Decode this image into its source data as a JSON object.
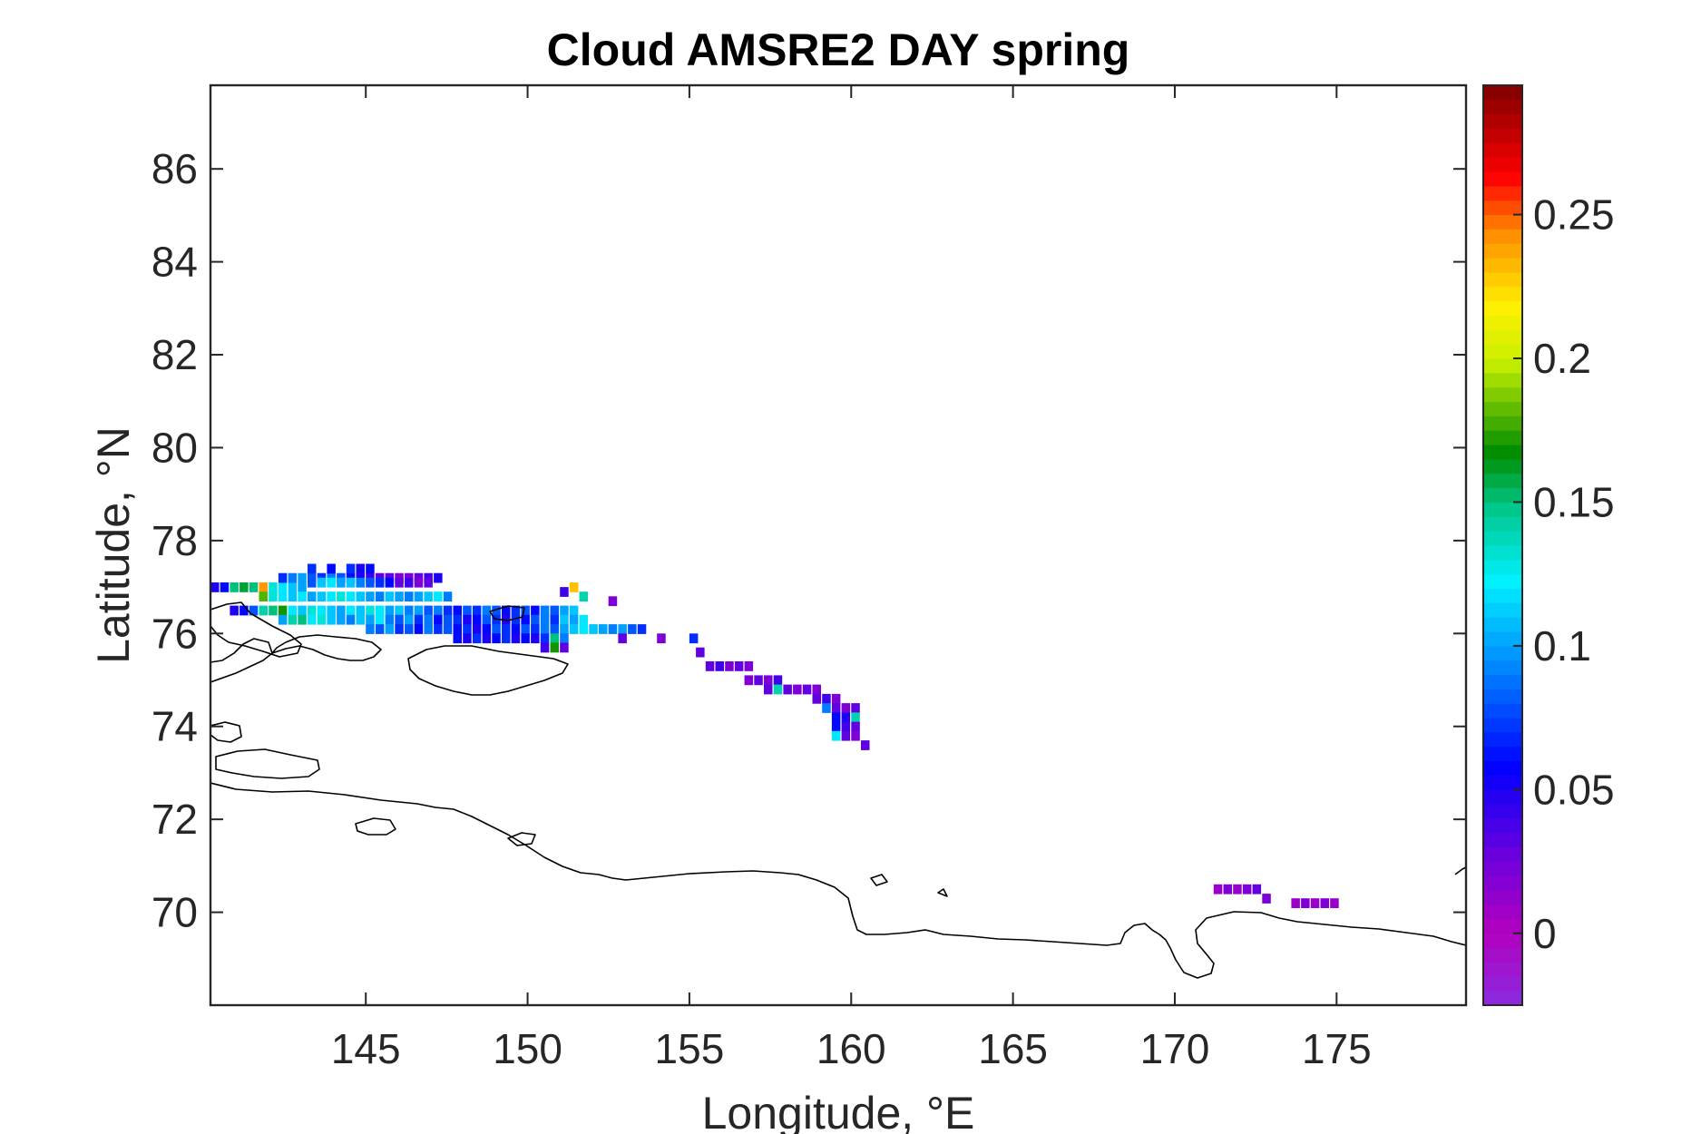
{
  "chart_data": {
    "type": "heatmap",
    "title": "Cloud AMSRE2 DAY spring",
    "xlabel": "Longitude, °E",
    "ylabel": "Latitude, °N",
    "xlim": [
      140.2,
      179.0
    ],
    "ylim": [
      68.0,
      87.8
    ],
    "xticks": [
      145,
      150,
      155,
      160,
      165,
      170,
      175
    ],
    "yticks": [
      70,
      72,
      74,
      76,
      78,
      80,
      82,
      84,
      86
    ],
    "colorbar": {
      "colormap": "jet-with-violet-low",
      "clim": [
        -0.025,
        0.295
      ],
      "ticks": [
        0,
        0.05,
        0.1,
        0.15,
        0.2,
        0.25
      ]
    },
    "grid": false,
    "cell_size": {
      "lon": 0.25,
      "lat": 0.2
    },
    "cells": [
      [
        140.2,
        76.9,
        0.05
      ],
      [
        140.5,
        76.9,
        0.06
      ],
      [
        140.8,
        76.9,
        0.15
      ],
      [
        141.1,
        76.9,
        0.16
      ],
      [
        141.4,
        76.9,
        0.15
      ],
      [
        141.7,
        76.9,
        0.24
      ],
      [
        142.0,
        76.9,
        0.13
      ],
      [
        142.3,
        76.9,
        0.12
      ],
      [
        142.6,
        76.9,
        0.11
      ],
      [
        142.9,
        76.9,
        0.1
      ],
      [
        142.3,
        77.1,
        0.07
      ],
      [
        142.6,
        77.1,
        0.09
      ],
      [
        142.9,
        77.1,
        0.1
      ],
      [
        143.2,
        77.1,
        0.08
      ],
      [
        143.5,
        77.1,
        0.07
      ],
      [
        143.8,
        77.1,
        0.09
      ],
      [
        144.1,
        77.1,
        0.08
      ],
      [
        144.4,
        77.1,
        0.06
      ],
      [
        144.7,
        77.1,
        0.05
      ],
      [
        145.0,
        77.1,
        0.04
      ],
      [
        145.3,
        77.1,
        0.03
      ],
      [
        145.6,
        77.1,
        0.03
      ],
      [
        145.9,
        77.1,
        0.02
      ],
      [
        146.2,
        77.1,
        0.02
      ],
      [
        146.5,
        77.1,
        0.03
      ],
      [
        146.8,
        77.1,
        0.04
      ],
      [
        147.1,
        77.1,
        0.05
      ],
      [
        143.2,
        77.3,
        0.07
      ],
      [
        143.8,
        77.3,
        0.06
      ],
      [
        144.4,
        77.3,
        0.07
      ],
      [
        144.7,
        77.3,
        0.05
      ],
      [
        145.0,
        77.3,
        0.06
      ],
      [
        143.2,
        77.0,
        0.08
      ],
      [
        143.5,
        77.0,
        0.11
      ],
      [
        143.8,
        77.0,
        0.12
      ],
      [
        144.1,
        77.0,
        0.1
      ],
      [
        144.4,
        77.0,
        0.11
      ],
      [
        144.7,
        77.0,
        0.09
      ],
      [
        145.0,
        77.0,
        0.08
      ],
      [
        145.3,
        77.0,
        0.07
      ],
      [
        145.6,
        77.0,
        0.06
      ],
      [
        145.9,
        77.0,
        0.03
      ],
      [
        146.2,
        77.0,
        0.04
      ],
      [
        146.5,
        77.0,
        0.02
      ],
      [
        146.8,
        77.0,
        0.03
      ],
      [
        141.7,
        76.7,
        0.18
      ],
      [
        142.0,
        76.7,
        0.13
      ],
      [
        142.3,
        76.7,
        0.12
      ],
      [
        142.6,
        76.7,
        0.11
      ],
      [
        142.9,
        76.7,
        0.12
      ],
      [
        143.2,
        76.7,
        0.1
      ],
      [
        143.5,
        76.7,
        0.11
      ],
      [
        143.8,
        76.7,
        0.12
      ],
      [
        144.1,
        76.7,
        0.13
      ],
      [
        144.4,
        76.7,
        0.12
      ],
      [
        144.7,
        76.7,
        0.11
      ],
      [
        145.0,
        76.7,
        0.1
      ],
      [
        145.3,
        76.7,
        0.09
      ],
      [
        145.6,
        76.7,
        0.11
      ],
      [
        145.9,
        76.7,
        0.1
      ],
      [
        146.2,
        76.7,
        0.09
      ],
      [
        146.5,
        76.7,
        0.1
      ],
      [
        146.8,
        76.7,
        0.11
      ],
      [
        147.1,
        76.7,
        0.12
      ],
      [
        147.4,
        76.7,
        0.09
      ],
      [
        140.8,
        76.4,
        0.05
      ],
      [
        141.1,
        76.4,
        0.06
      ],
      [
        141.4,
        76.4,
        0.08
      ],
      [
        141.7,
        76.4,
        0.14
      ],
      [
        142.0,
        76.4,
        0.15
      ],
      [
        142.3,
        76.4,
        0.17
      ],
      [
        142.6,
        76.4,
        0.12
      ],
      [
        142.9,
        76.4,
        0.11
      ],
      [
        143.2,
        76.4,
        0.13
      ],
      [
        143.5,
        76.4,
        0.12
      ],
      [
        143.8,
        76.4,
        0.11
      ],
      [
        144.1,
        76.4,
        0.1
      ],
      [
        144.4,
        76.4,
        0.12
      ],
      [
        144.7,
        76.4,
        0.11
      ],
      [
        145.0,
        76.4,
        0.13
      ],
      [
        145.3,
        76.4,
        0.12
      ],
      [
        145.6,
        76.4,
        0.1
      ],
      [
        145.9,
        76.4,
        0.11
      ],
      [
        146.2,
        76.4,
        0.09
      ],
      [
        146.5,
        76.4,
        0.1
      ],
      [
        146.8,
        76.4,
        0.08
      ],
      [
        147.1,
        76.4,
        0.09
      ],
      [
        147.4,
        76.4,
        0.07
      ],
      [
        147.7,
        76.4,
        0.06
      ],
      [
        148.0,
        76.4,
        0.08
      ],
      [
        148.3,
        76.4,
        0.07
      ],
      [
        148.6,
        76.4,
        0.09
      ],
      [
        148.9,
        76.4,
        0.08
      ],
      [
        149.2,
        76.4,
        0.06
      ],
      [
        149.5,
        76.4,
        0.07
      ],
      [
        149.8,
        76.4,
        0.08
      ],
      [
        150.1,
        76.4,
        0.06
      ],
      [
        150.4,
        76.4,
        0.09
      ],
      [
        150.7,
        76.4,
        0.08
      ],
      [
        151.0,
        76.4,
        0.1
      ],
      [
        151.3,
        76.4,
        0.11
      ],
      [
        142.3,
        76.2,
        0.1
      ],
      [
        142.6,
        76.2,
        0.14
      ],
      [
        142.9,
        76.2,
        0.15
      ],
      [
        143.2,
        76.2,
        0.12
      ],
      [
        143.5,
        76.2,
        0.13
      ],
      [
        143.8,
        76.2,
        0.11
      ],
      [
        144.1,
        76.2,
        0.1
      ],
      [
        144.4,
        76.2,
        0.09
      ],
      [
        144.7,
        76.2,
        0.11
      ],
      [
        145.0,
        76.2,
        0.1
      ],
      [
        145.3,
        76.2,
        0.12
      ],
      [
        145.6,
        76.2,
        0.09
      ],
      [
        145.9,
        76.2,
        0.08
      ],
      [
        146.2,
        76.2,
        0.1
      ],
      [
        146.5,
        76.2,
        0.07
      ],
      [
        146.8,
        76.2,
        0.09
      ],
      [
        147.1,
        76.2,
        0.06
      ],
      [
        147.4,
        76.2,
        0.08
      ],
      [
        147.7,
        76.2,
        0.07
      ],
      [
        148.0,
        76.2,
        0.05
      ],
      [
        148.3,
        76.2,
        0.06
      ],
      [
        148.6,
        76.2,
        0.08
      ],
      [
        148.9,
        76.2,
        0.07
      ],
      [
        149.2,
        76.2,
        0.05
      ],
      [
        149.5,
        76.2,
        0.07
      ],
      [
        149.8,
        76.2,
        0.06
      ],
      [
        150.1,
        76.2,
        0.08
      ],
      [
        150.4,
        76.2,
        0.09
      ],
      [
        150.7,
        76.2,
        0.07
      ],
      [
        151.0,
        76.2,
        0.11
      ],
      [
        151.3,
        76.2,
        0.1
      ],
      [
        151.6,
        76.2,
        0.12
      ],
      [
        145.0,
        76.0,
        0.09
      ],
      [
        145.3,
        76.0,
        0.08
      ],
      [
        145.6,
        76.0,
        0.1
      ],
      [
        145.9,
        76.0,
        0.07
      ],
      [
        146.2,
        76.0,
        0.08
      ],
      [
        146.5,
        76.0,
        0.06
      ],
      [
        146.8,
        76.0,
        0.09
      ],
      [
        147.1,
        76.0,
        0.07
      ],
      [
        147.4,
        76.0,
        0.08
      ],
      [
        147.7,
        76.0,
        0.06
      ],
      [
        148.0,
        76.0,
        0.07
      ],
      [
        148.3,
        76.0,
        0.05
      ],
      [
        148.6,
        76.0,
        0.06
      ],
      [
        148.9,
        76.0,
        0.08
      ],
      [
        149.2,
        76.0,
        0.07
      ],
      [
        149.5,
        76.0,
        0.06
      ],
      [
        149.8,
        76.0,
        0.08
      ],
      [
        150.1,
        76.0,
        0.07
      ],
      [
        150.4,
        76.0,
        0.09
      ],
      [
        150.7,
        76.0,
        0.08
      ],
      [
        151.0,
        76.0,
        0.1
      ],
      [
        151.3,
        76.0,
        0.11
      ],
      [
        151.6,
        76.0,
        0.12
      ],
      [
        151.9,
        76.0,
        0.11
      ],
      [
        152.2,
        76.0,
        0.1
      ],
      [
        152.5,
        76.0,
        0.09
      ],
      [
        152.8,
        76.0,
        0.1
      ],
      [
        153.1,
        76.0,
        0.08
      ],
      [
        153.4,
        76.0,
        0.07
      ],
      [
        147.7,
        75.8,
        0.06
      ],
      [
        148.0,
        75.8,
        0.05
      ],
      [
        148.3,
        75.8,
        0.07
      ],
      [
        148.6,
        75.8,
        0.05
      ],
      [
        148.9,
        75.8,
        0.06
      ],
      [
        149.2,
        75.8,
        0.07
      ],
      [
        149.5,
        75.8,
        0.05
      ],
      [
        149.8,
        75.8,
        0.06
      ],
      [
        150.1,
        75.8,
        0.05
      ],
      [
        150.4,
        75.8,
        0.07
      ],
      [
        150.7,
        75.8,
        0.15
      ],
      [
        151.0,
        75.8,
        0.09
      ],
      [
        152.8,
        75.8,
        0.03
      ],
      [
        154.0,
        75.8,
        0.02
      ],
      [
        150.4,
        75.6,
        0.04
      ],
      [
        150.7,
        75.6,
        0.17
      ],
      [
        151.0,
        75.6,
        0.03
      ],
      [
        151.3,
        76.9,
        0.23
      ],
      [
        151.6,
        76.7,
        0.14
      ],
      [
        151.0,
        76.8,
        0.04
      ],
      [
        152.5,
        76.6,
        0.02
      ],
      [
        155.0,
        75.8,
        0.07
      ],
      [
        155.2,
        75.5,
        0.03
      ],
      [
        155.5,
        75.2,
        0.03
      ],
      [
        155.8,
        75.2,
        0.04
      ],
      [
        156.1,
        75.2,
        0.02
      ],
      [
        156.4,
        75.2,
        0.03
      ],
      [
        156.7,
        75.2,
        0.02
      ],
      [
        156.7,
        74.9,
        0.02
      ],
      [
        157.0,
        74.9,
        0.03
      ],
      [
        157.3,
        74.9,
        0.02
      ],
      [
        157.6,
        74.9,
        0.04
      ],
      [
        157.3,
        74.7,
        0.03
      ],
      [
        157.6,
        74.7,
        0.14
      ],
      [
        157.9,
        74.7,
        0.03
      ],
      [
        158.2,
        74.7,
        0.02
      ],
      [
        158.5,
        74.7,
        0.03
      ],
      [
        158.8,
        74.7,
        0.02
      ],
      [
        158.8,
        74.5,
        0.03
      ],
      [
        159.1,
        74.5,
        0.04
      ],
      [
        159.4,
        74.5,
        0.02
      ],
      [
        159.1,
        74.3,
        0.09
      ],
      [
        159.4,
        74.3,
        0.03
      ],
      [
        159.7,
        74.3,
        0.02
      ],
      [
        160.0,
        74.3,
        0.03
      ],
      [
        159.4,
        74.1,
        0.06
      ],
      [
        159.7,
        74.1,
        0.05
      ],
      [
        160.0,
        74.1,
        0.14
      ],
      [
        159.4,
        73.9,
        0.06
      ],
      [
        159.7,
        73.9,
        0.04
      ],
      [
        160.0,
        73.9,
        0.03
      ],
      [
        159.4,
        73.7,
        0.12
      ],
      [
        159.7,
        73.7,
        0.03
      ],
      [
        160.0,
        73.7,
        0.02
      ],
      [
        160.3,
        73.5,
        0.03
      ],
      [
        171.2,
        70.4,
        0.01
      ],
      [
        171.5,
        70.4,
        0.02
      ],
      [
        171.8,
        70.4,
        0.01
      ],
      [
        172.1,
        70.4,
        0.02
      ],
      [
        172.4,
        70.4,
        0.03
      ],
      [
        172.7,
        70.2,
        0.02
      ],
      [
        173.6,
        70.1,
        0.01
      ],
      [
        173.9,
        70.1,
        0.02
      ],
      [
        174.2,
        70.1,
        0.01
      ],
      [
        174.5,
        70.1,
        0.02
      ],
      [
        174.8,
        70.1,
        0.01
      ]
    ]
  }
}
